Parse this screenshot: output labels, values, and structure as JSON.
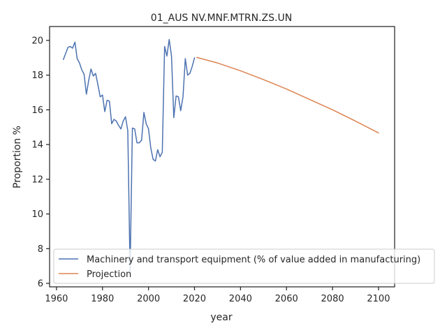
{
  "chart_data": {
    "type": "line",
    "title": "01_AUS NV.MNF.MTRN.ZS.UN",
    "xlabel": "year",
    "ylabel": "Proportion %",
    "xlim": [
      1957,
      2107
    ],
    "ylim": [
      5.8,
      20.8
    ],
    "xticks": [
      1960,
      1980,
      2000,
      2020,
      2040,
      2060,
      2080,
      2100
    ],
    "yticks": [
      6,
      8,
      10,
      12,
      14,
      16,
      18,
      20
    ],
    "grid": false,
    "legend_position": "lower-left",
    "series": [
      {
        "name": "Machinery and transport equipment (% of value added in manufacturing)",
        "color": "#4c72b0",
        "x": [
          1963,
          1964,
          1965,
          1966,
          1967,
          1968,
          1969,
          1970,
          1971,
          1972,
          1973,
          1974,
          1975,
          1976,
          1977,
          1978,
          1979,
          1980,
          1981,
          1982,
          1983,
          1984,
          1985,
          1986,
          1987,
          1988,
          1989,
          1990,
          1991,
          1992,
          1993,
          1994,
          1995,
          1996,
          1997,
          1998,
          1999,
          2000,
          2001,
          2002,
          2003,
          2004,
          2005,
          2006,
          2007,
          2008,
          2009,
          2010,
          2011,
          2012,
          2013,
          2014,
          2015,
          2016,
          2017,
          2018,
          2019,
          2020
        ],
        "y": [
          18.9,
          19.25,
          19.6,
          19.65,
          19.55,
          19.9,
          18.95,
          18.7,
          18.3,
          18.05,
          16.9,
          17.7,
          18.35,
          17.95,
          18.1,
          17.45,
          16.75,
          16.85,
          15.9,
          16.55,
          16.5,
          15.2,
          15.45,
          15.35,
          15.1,
          14.9,
          15.35,
          15.6,
          14.8,
          6.7,
          14.95,
          14.9,
          14.1,
          14.1,
          14.25,
          15.85,
          15.2,
          14.9,
          13.8,
          13.15,
          13.05,
          13.7,
          13.3,
          13.55,
          19.65,
          19.1,
          20.05,
          19.1,
          15.55,
          16.8,
          16.75,
          15.95,
          16.75,
          18.95,
          18.0,
          18.1,
          18.5,
          19.0
        ]
      },
      {
        "name": "Projection",
        "color": "#dd8452",
        "x": [
          2021,
          2030,
          2040,
          2050,
          2060,
          2070,
          2080,
          2090,
          2100
        ],
        "y": [
          19.02,
          18.7,
          18.25,
          17.74,
          17.2,
          16.6,
          16.0,
          15.35,
          14.67
        ]
      }
    ]
  }
}
